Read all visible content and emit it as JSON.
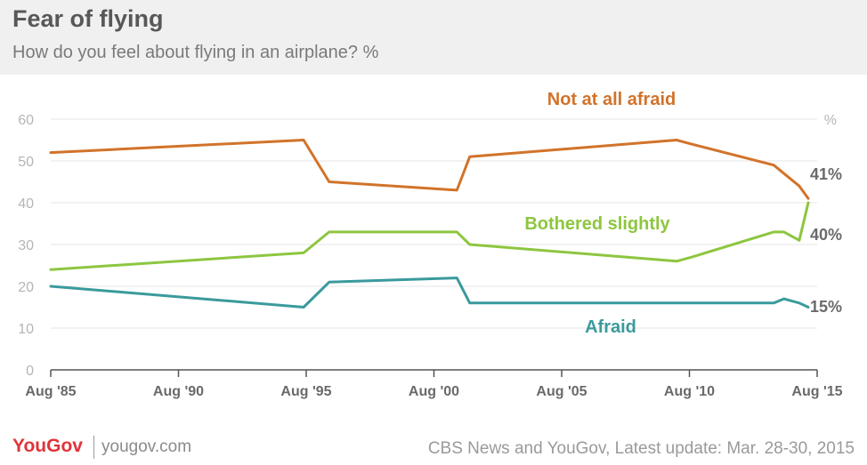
{
  "header": {
    "title": "Fear of flying",
    "subtitle": "How do you feel about flying in an airplane? %"
  },
  "footer": {
    "logo": "YouGov",
    "site": "yougov.com",
    "source": "CBS News and YouGov, Latest update: Mar. 28-30, 2015"
  },
  "colors": {
    "not_afraid": "#d2732a",
    "bothered": "#8dc63f",
    "afraid": "#3a9a9c",
    "axis_text": "#b5b5b5",
    "grid": "#e6e6e6"
  },
  "chart_data": {
    "type": "line",
    "ylim": [
      0,
      60
    ],
    "y_ticks": [
      0,
      10,
      20,
      30,
      40,
      50,
      60
    ],
    "y_unit_label": "%",
    "xlim": [
      1985.6,
      2015.25
    ],
    "x_ticks": [
      {
        "x": 1985.6,
        "label": "Aug '85"
      },
      {
        "x": 1990.6,
        "label": "Aug '90"
      },
      {
        "x": 1995.6,
        "label": "Aug '95"
      },
      {
        "x": 2000.6,
        "label": "Aug '00"
      },
      {
        "x": 2005.6,
        "label": "Aug '05"
      },
      {
        "x": 2010.6,
        "label": "Aug '10"
      },
      {
        "x": 2015.6,
        "label": "Aug '15"
      }
    ],
    "grid": true,
    "series": [
      {
        "name": "Not at all afraid",
        "color_key": "not_afraid",
        "end_label": "41%",
        "points": [
          [
            1985.6,
            52
          ],
          [
            1995.5,
            55
          ],
          [
            1996.5,
            45
          ],
          [
            2001.5,
            43
          ],
          [
            2002.0,
            51
          ],
          [
            2010.1,
            55
          ],
          [
            2010.7,
            54
          ],
          [
            2013.9,
            49
          ],
          [
            2014.5,
            46
          ],
          [
            2014.9,
            44
          ],
          [
            2015.25,
            41
          ]
        ]
      },
      {
        "name": "Bothered slightly",
        "color_key": "bothered",
        "end_label": "40%",
        "points": [
          [
            1985.6,
            24
          ],
          [
            1995.5,
            28
          ],
          [
            1996.5,
            33
          ],
          [
            2001.5,
            33
          ],
          [
            2002.0,
            30
          ],
          [
            2010.1,
            26
          ],
          [
            2010.7,
            27
          ],
          [
            2013.9,
            33
          ],
          [
            2014.3,
            33
          ],
          [
            2014.9,
            31
          ],
          [
            2015.25,
            40
          ]
        ]
      },
      {
        "name": "Afraid",
        "color_key": "afraid",
        "end_label": "15%",
        "points": [
          [
            1985.6,
            20
          ],
          [
            1995.5,
            15
          ],
          [
            1996.5,
            21
          ],
          [
            2001.5,
            22
          ],
          [
            2002.0,
            16
          ],
          [
            2013.9,
            16
          ],
          [
            2014.3,
            17
          ],
          [
            2014.9,
            16
          ],
          [
            2015.25,
            15
          ]
        ]
      }
    ]
  }
}
